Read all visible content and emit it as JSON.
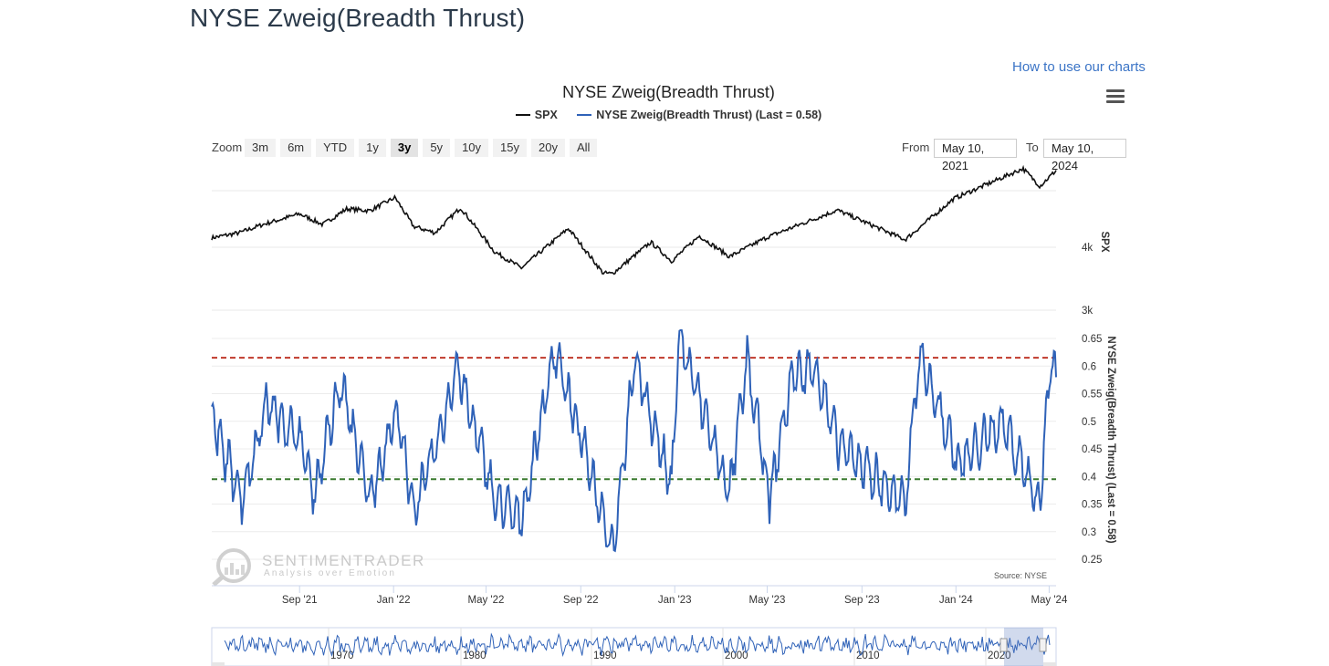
{
  "page": {
    "title": "NYSE Zweig(Breadth Thrust)",
    "help_link": "How to use our charts"
  },
  "toolbar": {
    "zoom_label": "Zoom",
    "zoom_options": [
      "3m",
      "6m",
      "YTD",
      "1y",
      "3y",
      "5y",
      "10y",
      "15y",
      "20y",
      "All"
    ],
    "zoom_selected": "3y",
    "from_label": "From",
    "from_value": "May 10, 2021",
    "to_label": "To",
    "to_value": "May 10, 2024",
    "menu_icon": "hamburger-menu-icon"
  },
  "colors": {
    "spx": "#111111",
    "zweig": "#2f62b8",
    "upper_threshold": "#c0392b",
    "lower_threshold": "#3a7a2e"
  },
  "watermark": {
    "brand": "SENTIMENTRADER",
    "tagline": "Analysis over Emotion"
  },
  "source_note": "Source: NYSE",
  "chart_data": {
    "type": "line",
    "title": "NYSE Zweig(Breadth Thrust)",
    "legend": [
      "SPX",
      "NYSE Zweig(Breadth Thrust) (Last = 0.58)"
    ],
    "x_ticks": [
      "Sep '21",
      "Jan '22",
      "May '22",
      "Sep '22",
      "Jan '23",
      "May '23",
      "Sep '23",
      "Jan '24",
      "May '24"
    ],
    "x_range": [
      "2021-05-10",
      "2024-05-10"
    ],
    "navigator_ticks": [
      "1970",
      "1980",
      "1990",
      "2000",
      "2010",
      "2020"
    ],
    "series": [
      {
        "name": "SPX",
        "axis": "SPX",
        "y_ticks": [
          "3k",
          "4k"
        ],
        "points": [
          [
            "2021-05-10",
            4150
          ],
          [
            "2021-06-15",
            4230
          ],
          [
            "2021-07-15",
            4360
          ],
          [
            "2021-08-15",
            4470
          ],
          [
            "2021-09-01",
            4530
          ],
          [
            "2021-10-01",
            4360
          ],
          [
            "2021-11-01",
            4610
          ],
          [
            "2021-12-01",
            4580
          ],
          [
            "2022-01-03",
            4790
          ],
          [
            "2022-01-27",
            4330
          ],
          [
            "2022-02-24",
            4230
          ],
          [
            "2022-03-29",
            4630
          ],
          [
            "2022-05-12",
            3930
          ],
          [
            "2022-06-16",
            3670
          ],
          [
            "2022-08-16",
            4300
          ],
          [
            "2022-09-30",
            3590
          ],
          [
            "2022-10-12",
            3580
          ],
          [
            "2022-12-01",
            4080
          ],
          [
            "2022-12-28",
            3780
          ],
          [
            "2023-02-02",
            4180
          ],
          [
            "2023-03-13",
            3850
          ],
          [
            "2023-05-01",
            4160
          ],
          [
            "2023-07-31",
            4590
          ],
          [
            "2023-10-27",
            4120
          ],
          [
            "2023-12-29",
            4770
          ],
          [
            "2024-03-28",
            5250
          ],
          [
            "2024-04-19",
            4970
          ],
          [
            "2024-05-10",
            5220
          ]
        ]
      },
      {
        "name": "NYSE Zweig(Breadth Thrust) (Last = 0.58)",
        "axis": "NYSE Zweig(Breadth Thrust) (Last = 0.58)",
        "y_ticks": [
          "0.25",
          "0.3",
          "0.35",
          "0.4",
          "0.45",
          "0.5",
          "0.55",
          "0.6",
          "0.65"
        ],
        "last": 0.58,
        "upper_threshold": 0.615,
        "lower_threshold": 0.395,
        "points": [
          [
            "2021-05-10",
            0.5
          ],
          [
            "2021-06-18",
            0.36
          ],
          [
            "2021-07-20",
            0.53
          ],
          [
            "2021-09-01",
            0.47
          ],
          [
            "2021-09-20",
            0.37
          ],
          [
            "2021-10-25",
            0.57
          ],
          [
            "2021-12-01",
            0.36
          ],
          [
            "2022-01-05",
            0.52
          ],
          [
            "2022-01-27",
            0.34
          ],
          [
            "2022-03-01",
            0.47
          ],
          [
            "2022-03-25",
            0.6
          ],
          [
            "2022-05-12",
            0.36
          ],
          [
            "2022-06-16",
            0.32
          ],
          [
            "2022-07-29",
            0.63
          ],
          [
            "2022-08-15",
            0.55
          ],
          [
            "2022-09-30",
            0.33
          ],
          [
            "2022-10-13",
            0.27
          ],
          [
            "2022-11-10",
            0.61
          ],
          [
            "2022-12-28",
            0.38
          ],
          [
            "2023-01-06",
            0.66
          ],
          [
            "2023-03-13",
            0.37
          ],
          [
            "2023-04-05",
            0.61
          ],
          [
            "2023-05-04",
            0.36
          ],
          [
            "2023-06-02",
            0.58
          ],
          [
            "2023-07-01",
            0.6
          ],
          [
            "2023-08-01",
            0.46
          ],
          [
            "2023-10-27",
            0.35
          ],
          [
            "2023-11-14",
            0.62
          ],
          [
            "2024-01-05",
            0.42
          ],
          [
            "2024-03-01",
            0.5
          ],
          [
            "2024-04-19",
            0.35
          ],
          [
            "2024-05-03",
            0.62
          ],
          [
            "2024-05-10",
            0.58
          ]
        ]
      }
    ]
  }
}
